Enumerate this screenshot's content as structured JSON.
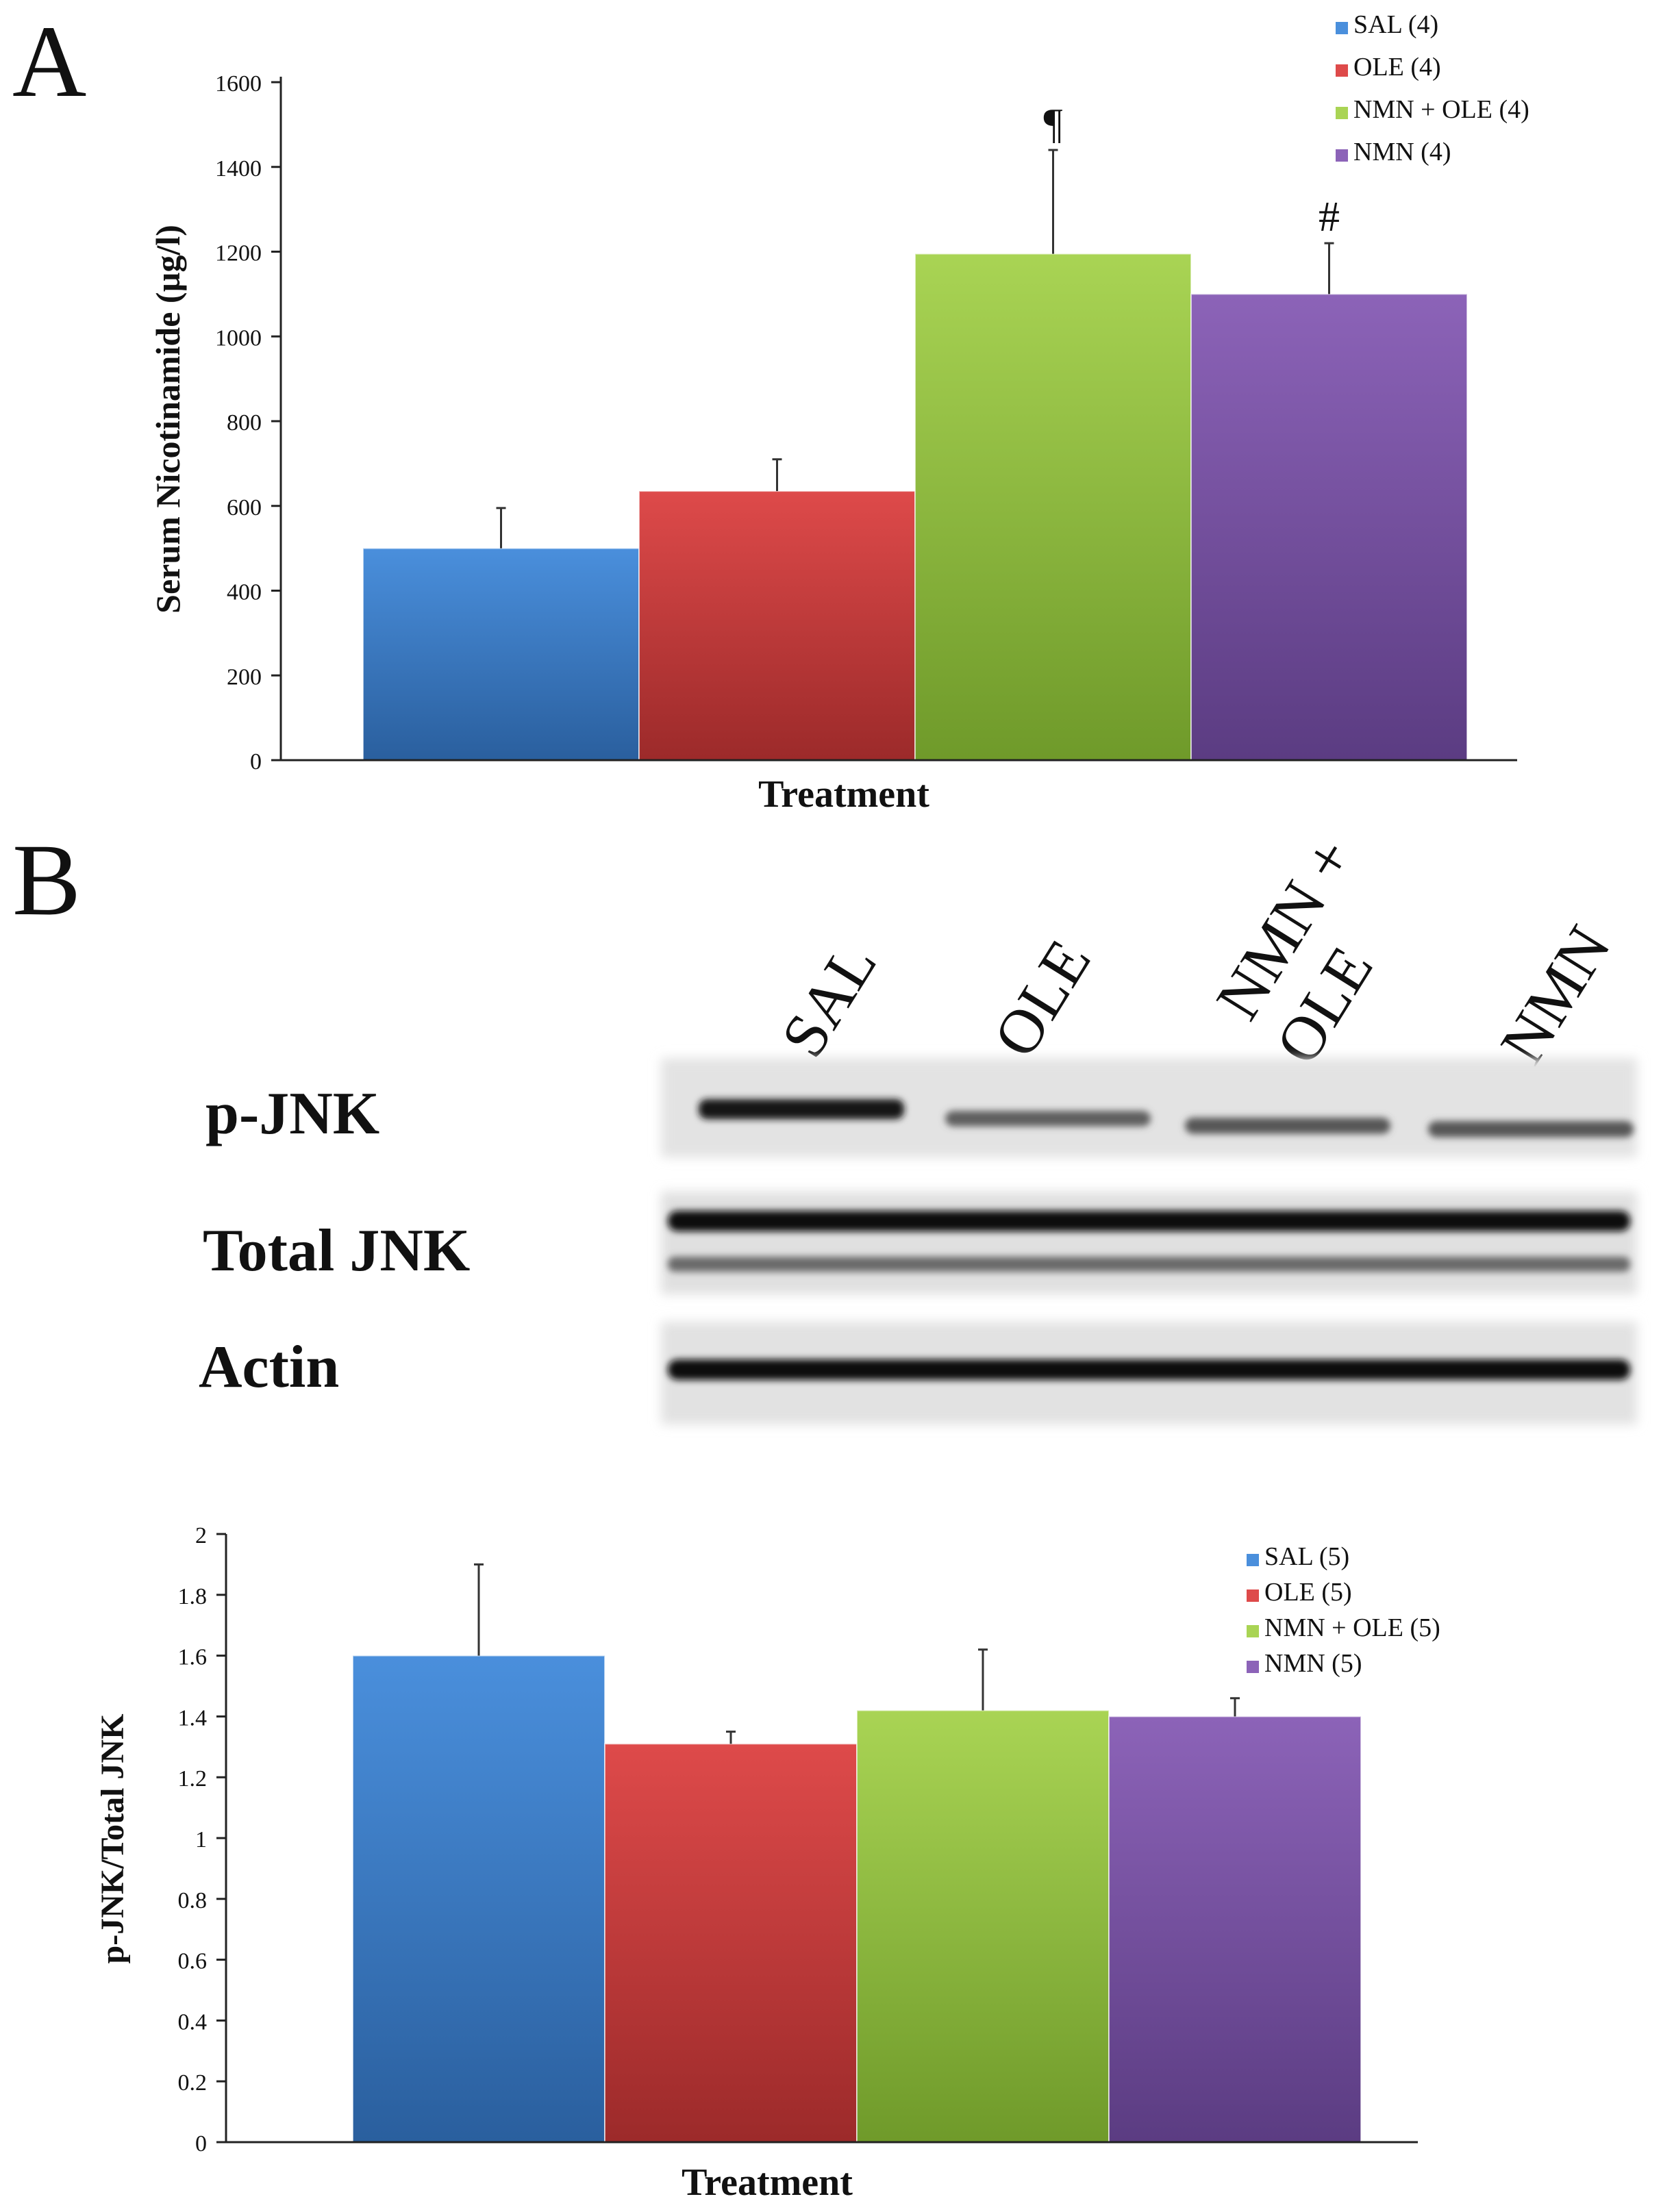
{
  "panels": {
    "a_letter": "A",
    "b_letter": "B"
  },
  "colors": {
    "blue_light": "#4a8fdc",
    "blue_dark": "#2a5f9e",
    "red_light": "#de4a4a",
    "red_dark": "#9c2a2a",
    "green_light": "#a9d454",
    "green_dark": "#6f9a2a",
    "purple_light": "#8c63b8",
    "purple_dark": "#5b3c82",
    "axis": "#222222",
    "text": "#111111"
  },
  "blot": {
    "lane_labels": [
      "SAL",
      "OLE",
      "NMN +",
      "OLE",
      "NMN"
    ],
    "row_labels": [
      "p-JNK",
      "Total JNK",
      "Actin"
    ],
    "pjnk_intensity": [
      0.95,
      0.55,
      0.6,
      0.6
    ]
  },
  "chart_data": [
    {
      "type": "bar",
      "categories": [
        "SAL",
        "OLE",
        "NMN + OLE",
        "NMN"
      ],
      "legend": [
        "SAL (4)",
        "OLE (4)",
        "NMN + OLE (4)",
        "NMN (4)"
      ],
      "values": [
        500,
        635,
        1195,
        1100
      ],
      "errors": [
        95,
        75,
        245,
        120
      ],
      "annotations": [
        "",
        "",
        "¶",
        "#"
      ],
      "title": "",
      "xlabel": "Treatment",
      "ylabel": "Serum Nicotinamide (µg/l)",
      "ylim": [
        0,
        1600
      ],
      "yticks": [
        0,
        200,
        400,
        600,
        800,
        1000,
        1200,
        1400,
        1600
      ],
      "ytick_labels": [
        "0",
        "200",
        "400",
        "600",
        "800",
        "1000",
        "1200",
        "1400",
        "1600"
      ],
      "legend_position": "top-right"
    },
    {
      "type": "bar",
      "categories": [
        "SAL",
        "OLE",
        "NMN + OLE",
        "NMN"
      ],
      "legend": [
        "SAL (5)",
        "OLE (5)",
        "NMN + OLE (5)",
        "NMN (5)"
      ],
      "values": [
        1.6,
        1.31,
        1.42,
        1.4
      ],
      "errors": [
        0.3,
        0.04,
        0.2,
        0.06
      ],
      "annotations": [
        "",
        "",
        "",
        ""
      ],
      "title": "",
      "xlabel": "Treatment",
      "ylabel": "p-JNK/Total JNK",
      "ylim": [
        0,
        2
      ],
      "yticks": [
        0,
        0.2,
        0.4,
        0.6,
        0.8,
        1,
        1.2,
        1.4,
        1.6,
        1.8,
        2
      ],
      "ytick_labels": [
        "0",
        "0.2",
        "0.4",
        "0.6",
        "0.8",
        "1",
        "1.2",
        "1.4",
        "1.6",
        "1.8",
        "2"
      ],
      "legend_position": "top-right"
    }
  ]
}
